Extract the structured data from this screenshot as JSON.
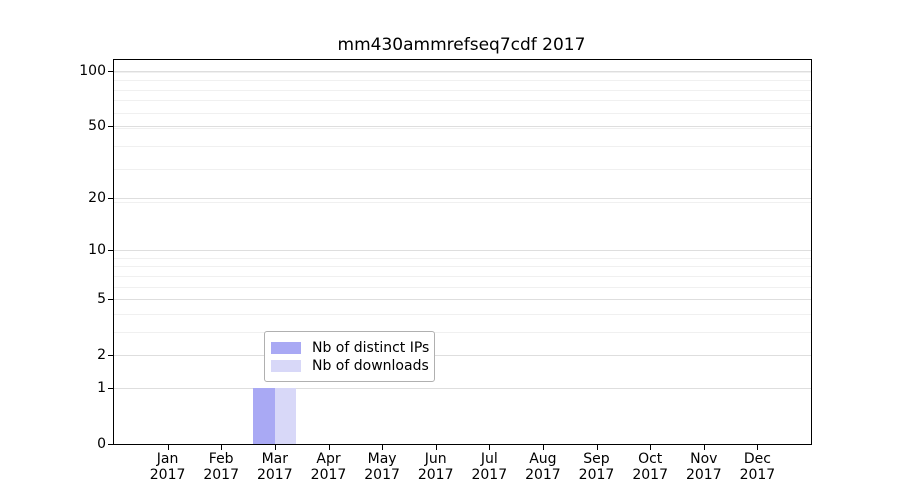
{
  "chart_data": {
    "type": "bar",
    "title": "mm430ammrefseq7cdf 2017",
    "categories": [
      "Jan 2017",
      "Feb 2017",
      "Mar 2017",
      "Apr 2017",
      "May 2017",
      "Jun 2017",
      "Jul 2017",
      "Aug 2017",
      "Sep 2017",
      "Oct 2017",
      "Nov 2017",
      "Dec 2017"
    ],
    "series": [
      {
        "name": "Nb of distinct IPs",
        "color": "#a9a9f4",
        "values": [
          0,
          0,
          1,
          0,
          0,
          0,
          0,
          0,
          0,
          0,
          0,
          0
        ]
      },
      {
        "name": "Nb of downloads",
        "color": "#d8d8f8",
        "values": [
          0,
          0,
          1,
          0,
          0,
          0,
          0,
          0,
          0,
          0,
          0,
          0
        ]
      }
    ],
    "xlabel": "",
    "ylabel": "",
    "y_axis": {
      "scale": "log10(1+y)",
      "tick_values": [
        0,
        1,
        2,
        5,
        10,
        20,
        50,
        100
      ],
      "max_underlying": 115.4,
      "minor_grid_underlying": [
        2,
        3,
        4,
        5,
        6,
        7,
        8,
        9,
        10,
        20,
        30,
        40,
        50,
        60,
        70,
        80,
        90,
        100
      ]
    },
    "legend": {
      "position": "bottom-center"
    },
    "grid": true,
    "colors": {
      "axis": "#000000",
      "major_grid": "#dedede",
      "minor_grid": "#f0f0f0",
      "legend_border": "#b0b0b0",
      "background": "#ffffff"
    }
  }
}
